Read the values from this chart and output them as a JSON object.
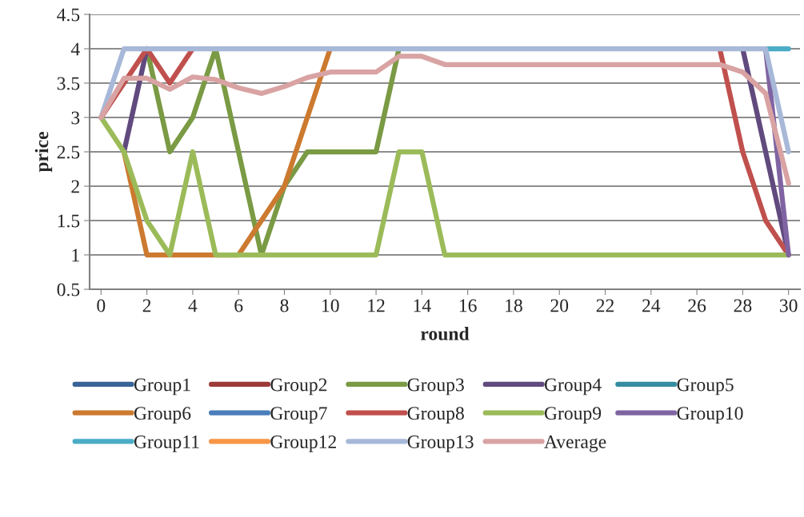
{
  "chart_data": {
    "type": "line",
    "xlabel": "round",
    "ylabel": "price",
    "x": [
      0,
      1,
      2,
      3,
      4,
      5,
      6,
      7,
      8,
      9,
      10,
      11,
      12,
      13,
      14,
      15,
      16,
      17,
      18,
      19,
      20,
      21,
      22,
      23,
      24,
      25,
      26,
      27,
      28,
      29,
      30
    ],
    "xlim": [
      -0.5,
      30.5
    ],
    "xticks": [
      0,
      2,
      4,
      6,
      8,
      10,
      12,
      14,
      16,
      18,
      20,
      22,
      24,
      26,
      28,
      30
    ],
    "ylim": [
      0.5,
      4.5
    ],
    "yticks": [
      0.5,
      1,
      1.5,
      2,
      2.5,
      3,
      3.5,
      4,
      4.5
    ],
    "grid": "y",
    "legend": "bottom",
    "marker": "none",
    "line_style": "solid",
    "series": [
      {
        "name": "Group1",
        "color": "#386498",
        "values": [
          null,
          null,
          null,
          null,
          null,
          null,
          null,
          null,
          null,
          null,
          null,
          null,
          null,
          null,
          null,
          null,
          null,
          null,
          null,
          null,
          null,
          null,
          null,
          null,
          null,
          null,
          null,
          null,
          null,
          null,
          null
        ]
      },
      {
        "name": "Group2",
        "color": "#9c3a38",
        "values": [
          null,
          null,
          null,
          null,
          null,
          null,
          null,
          null,
          null,
          null,
          null,
          null,
          null,
          null,
          null,
          null,
          null,
          null,
          null,
          null,
          null,
          null,
          null,
          null,
          null,
          null,
          null,
          null,
          null,
          null,
          null
        ]
      },
      {
        "name": "Group3",
        "color": "#7a9a44",
        "values": [
          null,
          null,
          4,
          2.5,
          3,
          4,
          2.5,
          1,
          2,
          2.5,
          2.5,
          2.5,
          2.5,
          4,
          null,
          null,
          null,
          null,
          null,
          null,
          null,
          null,
          null,
          null,
          null,
          null,
          null,
          null,
          null,
          null,
          null
        ]
      },
      {
        "name": "Group4",
        "color": "#614a7e",
        "values": [
          null,
          2.5,
          4,
          null,
          null,
          null,
          null,
          null,
          null,
          null,
          null,
          null,
          null,
          null,
          null,
          null,
          null,
          null,
          null,
          null,
          null,
          null,
          null,
          null,
          null,
          null,
          null,
          null,
          4,
          2.5,
          1
        ]
      },
      {
        "name": "Group5",
        "color": "#348da0",
        "values": [
          null,
          null,
          null,
          null,
          null,
          null,
          null,
          null,
          null,
          null,
          null,
          null,
          null,
          null,
          null,
          null,
          null,
          null,
          null,
          null,
          null,
          null,
          null,
          null,
          null,
          null,
          null,
          null,
          null,
          null,
          null
        ]
      },
      {
        "name": "Group6",
        "color": "#cc7a30",
        "values": [
          null,
          2.5,
          1,
          1,
          1,
          1,
          1,
          1.5,
          2,
          3,
          4,
          null,
          null,
          null,
          null,
          null,
          null,
          null,
          null,
          null,
          null,
          null,
          null,
          null,
          null,
          null,
          null,
          null,
          null,
          null,
          null
        ]
      },
      {
        "name": "Group7",
        "color": "#4a7ebb",
        "values": [
          null,
          null,
          null,
          null,
          null,
          null,
          null,
          null,
          null,
          null,
          null,
          null,
          null,
          null,
          null,
          null,
          null,
          null,
          null,
          null,
          null,
          null,
          null,
          null,
          null,
          null,
          null,
          null,
          null,
          null,
          null
        ]
      },
      {
        "name": "Group8",
        "color": "#c0504d",
        "values": [
          3,
          3.5,
          4,
          3.5,
          4,
          null,
          null,
          null,
          null,
          null,
          null,
          null,
          null,
          null,
          null,
          null,
          null,
          null,
          null,
          null,
          null,
          null,
          null,
          null,
          null,
          null,
          null,
          4,
          2.5,
          1.5,
          1
        ]
      },
      {
        "name": "Group9",
        "color": "#9bbb59",
        "values": [
          3,
          2.5,
          1.5,
          1,
          2.5,
          1,
          1,
          1,
          1,
          1,
          1,
          1,
          1,
          2.5,
          2.5,
          1,
          1,
          1,
          1,
          1,
          1,
          1,
          1,
          1,
          1,
          1,
          1,
          1,
          1,
          1,
          1
        ]
      },
      {
        "name": "Group10",
        "color": "#8064a2",
        "values": [
          null,
          null,
          null,
          null,
          null,
          null,
          null,
          null,
          null,
          null,
          null,
          null,
          null,
          null,
          null,
          null,
          null,
          null,
          null,
          null,
          null,
          null,
          null,
          null,
          null,
          null,
          null,
          null,
          null,
          4,
          1
        ]
      },
      {
        "name": "Group11",
        "color": "#4bacc6",
        "values": [
          null,
          null,
          null,
          null,
          null,
          null,
          null,
          null,
          null,
          null,
          null,
          null,
          null,
          null,
          null,
          null,
          null,
          null,
          null,
          null,
          null,
          null,
          null,
          null,
          null,
          null,
          null,
          null,
          null,
          4,
          4
        ]
      },
      {
        "name": "Group12",
        "color": "#f79646",
        "values": [
          null,
          null,
          null,
          null,
          null,
          null,
          null,
          null,
          null,
          null,
          null,
          null,
          null,
          null,
          null,
          null,
          null,
          null,
          null,
          null,
          null,
          null,
          null,
          null,
          null,
          null,
          null,
          null,
          null,
          null,
          null
        ]
      },
      {
        "name": "Group13",
        "color": "#a7b8d8",
        "values": [
          3,
          4,
          4,
          4,
          4,
          4,
          4,
          4,
          4,
          4,
          4,
          4,
          4,
          4,
          4,
          4,
          4,
          4,
          4,
          4,
          4,
          4,
          4,
          4,
          4,
          4,
          4,
          4,
          4,
          4,
          2.5
        ]
      },
      {
        "name": "Average",
        "color": "#d9a3a3",
        "values": [
          3,
          3.57,
          3.57,
          3.41,
          3.59,
          3.55,
          3.43,
          3.35,
          3.45,
          3.58,
          3.66,
          3.66,
          3.66,
          3.89,
          3.89,
          3.77,
          3.77,
          3.77,
          3.77,
          3.77,
          3.77,
          3.77,
          3.77,
          3.77,
          3.77,
          3.77,
          3.77,
          3.77,
          3.66,
          3.35,
          2.04
        ]
      }
    ]
  }
}
